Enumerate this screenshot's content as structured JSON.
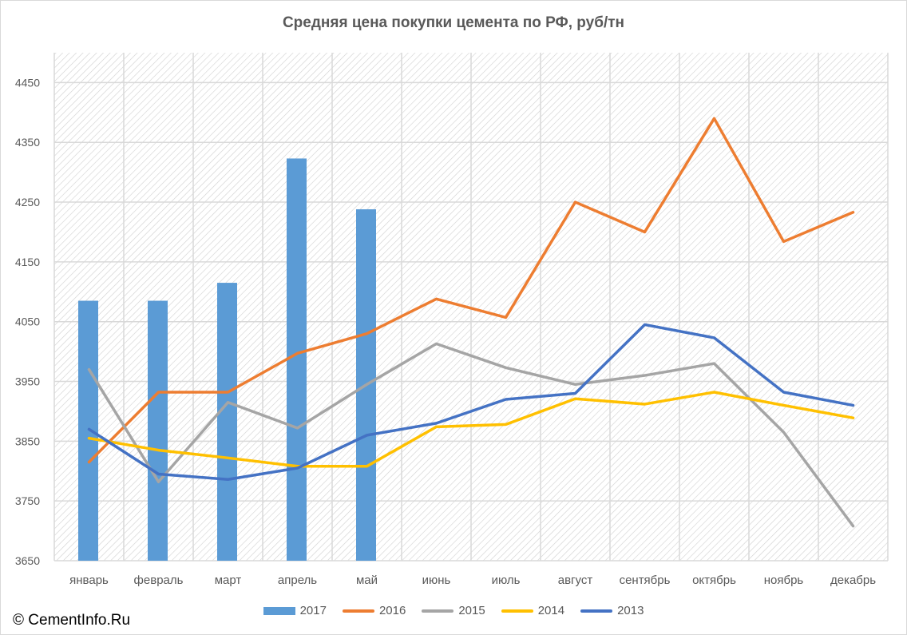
{
  "chart_data": {
    "type": "bar+line",
    "title": "Средняя цена покупки цемента по РФ, руб/тн",
    "categories": [
      "январь",
      "февраль",
      "март",
      "апрель",
      "май",
      "июнь",
      "июль",
      "август",
      "сентябрь",
      "октябрь",
      "ноябрь",
      "декабрь"
    ],
    "ylim": [
      3650,
      4500
    ],
    "yticks": [
      3650,
      3750,
      3850,
      3950,
      4050,
      4150,
      4250,
      4350,
      4450
    ],
    "grid": true,
    "legend_position": "bottom",
    "series": [
      {
        "name": "2017",
        "type": "bar",
        "color": "#5b9bd5",
        "values": [
          4085,
          4085,
          4115,
          4323,
          4238,
          null,
          null,
          null,
          null,
          null,
          null,
          null
        ]
      },
      {
        "name": "2016",
        "type": "line",
        "color": "#ed7d31",
        "values": [
          3815,
          3932,
          3932,
          3997,
          4030,
          4088,
          4057,
          4250,
          4200,
          4390,
          4184,
          4233
        ]
      },
      {
        "name": "2015",
        "type": "line",
        "color": "#a5a5a5",
        "values": [
          3970,
          3782,
          3915,
          3872,
          3945,
          4013,
          3973,
          3945,
          3960,
          3980,
          3865,
          3708
        ]
      },
      {
        "name": "2014",
        "type": "line",
        "color": "#ffc000",
        "values": [
          3855,
          3835,
          3822,
          3808,
          3808,
          3874,
          3878,
          3921,
          3912,
          3932,
          3910,
          3889
        ]
      },
      {
        "name": "2013",
        "type": "line",
        "color": "#4472c4",
        "values": [
          3870,
          3795,
          3786,
          3805,
          3860,
          3880,
          3920,
          3930,
          4045,
          4023,
          3932,
          3910
        ]
      }
    ]
  },
  "copyright": "© CementInfo.Ru"
}
